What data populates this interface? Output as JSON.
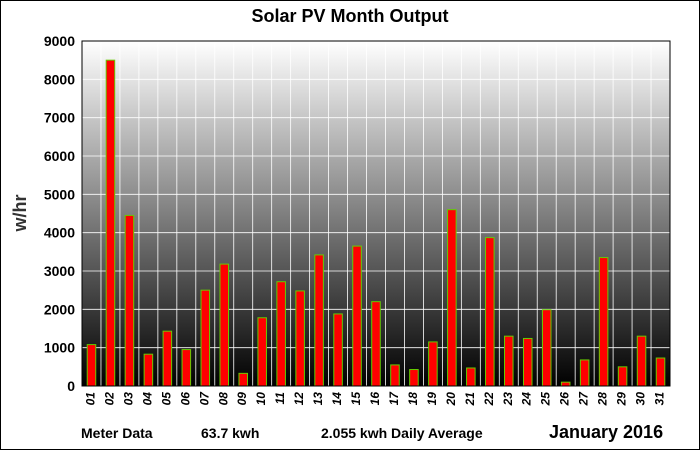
{
  "chart_data": {
    "type": "bar",
    "title": "Solar PV Month Output",
    "ylabel": "w/hr",
    "xlabel": "",
    "ylim": [
      0,
      9000
    ],
    "yticks": [
      0,
      1000,
      2000,
      3000,
      4000,
      5000,
      6000,
      7000,
      8000,
      9000
    ],
    "grid": true,
    "categories": [
      "01",
      "02",
      "03",
      "04",
      "05",
      "06",
      "07",
      "08",
      "09",
      "10",
      "11",
      "12",
      "13",
      "14",
      "15",
      "16",
      "17",
      "18",
      "19",
      "20",
      "21",
      "22",
      "23",
      "24",
      "25",
      "26",
      "27",
      "28",
      "29",
      "30",
      "31"
    ],
    "values": [
      1080,
      8500,
      4450,
      830,
      1430,
      950,
      2500,
      3180,
      330,
      1780,
      2720,
      2480,
      3420,
      1880,
      3650,
      2200,
      550,
      430,
      1150,
      4600,
      470,
      3870,
      1300,
      1240,
      1990,
      100,
      680,
      3350,
      500,
      1300,
      730
    ],
    "colors": {
      "bar_fill": "#ff0000",
      "bar_stroke": "#66cc00",
      "grid": "#ffffff",
      "plot_top": "#ffffff",
      "plot_bottom": "#000000"
    }
  },
  "footer": {
    "meter_label": "Meter Data",
    "total": "63.7 kwh",
    "average": "2.055 kwh Daily Average",
    "period": "January 2016"
  }
}
